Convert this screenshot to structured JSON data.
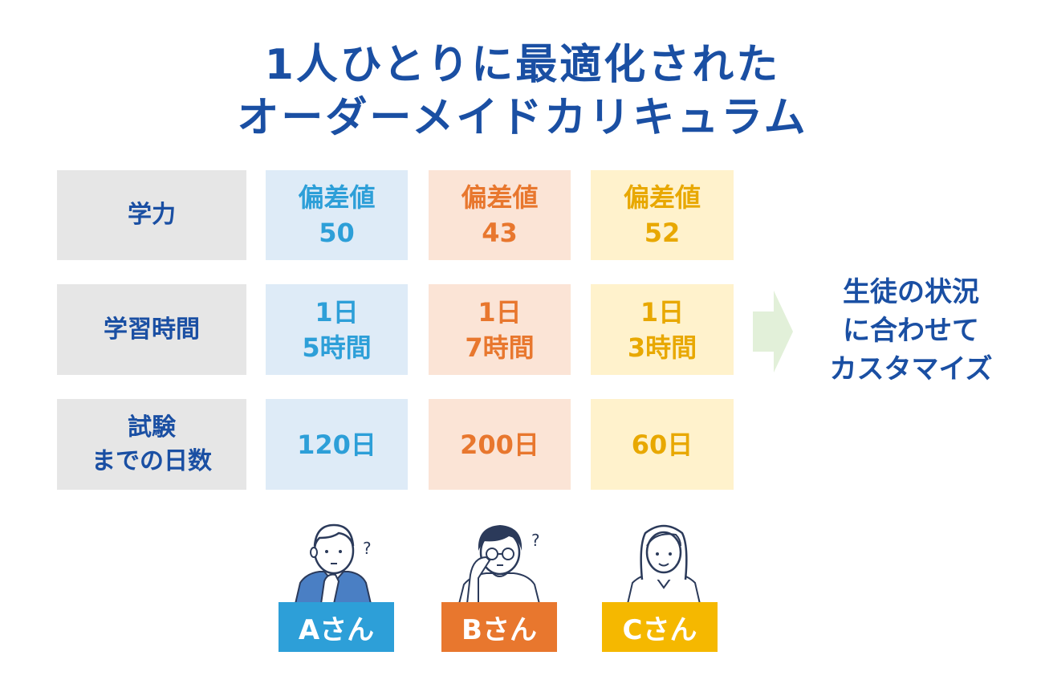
{
  "title": {
    "line1": "1人ひとりに最適化された",
    "line2": "オーダーメイドカリキュラム"
  },
  "rows": [
    {
      "label_lines": [
        "学力"
      ],
      "values": [
        [
          "偏差値",
          "50"
        ],
        [
          "偏差値",
          "43"
        ],
        [
          "偏差値",
          "52"
        ]
      ]
    },
    {
      "label_lines": [
        "学習時間"
      ],
      "values": [
        [
          "1日",
          "5時間"
        ],
        [
          "1日",
          "7時間"
        ],
        [
          "1日",
          "3時間"
        ]
      ]
    },
    {
      "label_lines": [
        "試験",
        "までの日数"
      ],
      "values": [
        [
          "120日"
        ],
        [
          "200日"
        ],
        [
          "60日"
        ]
      ]
    }
  ],
  "side_text": [
    "生徒の状況",
    "に合わせて",
    "カスタマイズ"
  ],
  "students": [
    {
      "name": "Aさん",
      "color": "#2d9fd8"
    },
    {
      "name": "Bさん",
      "color": "#e8772e"
    },
    {
      "name": "Cさん",
      "color": "#f5b800"
    }
  ],
  "colors": {
    "title": "#1a4fa3",
    "label_bg": "#e6e6e6",
    "a_bg": "#deebf7",
    "a_text": "#2d9fd8",
    "b_bg": "#fbe4d6",
    "b_text": "#e8772e",
    "c_bg": "#fff2cc",
    "c_text": "#e8a800",
    "arrow": "#e2f0d9"
  }
}
